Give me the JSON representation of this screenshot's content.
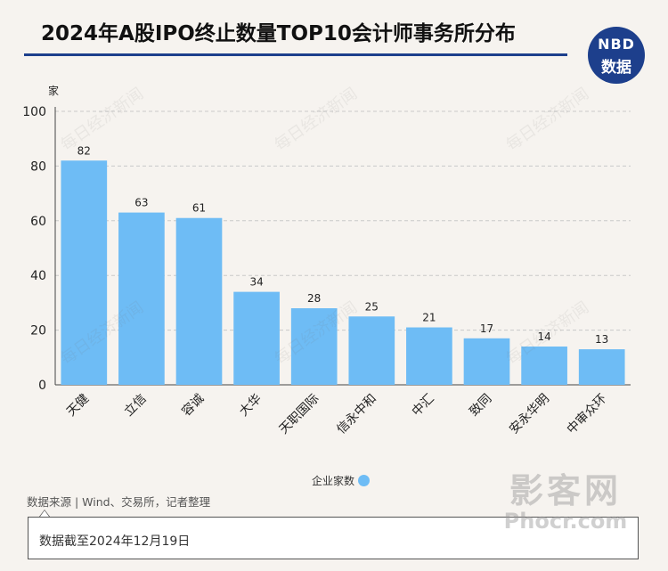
{
  "header": {
    "title": "2024年A股IPO终止数量TOP10会计师事务所分布",
    "logo_top": "NBD",
    "logo_bottom": "数据"
  },
  "chart_data": {
    "type": "bar",
    "title": "2024年A股IPO终止数量TOP10会计师事务所分布",
    "ylabel": "家",
    "xlabel": "",
    "categories": [
      "天健",
      "立信",
      "容诚",
      "大华",
      "天职国际",
      "信永中和",
      "中汇",
      "致同",
      "安永华明",
      "中审众环"
    ],
    "series": [
      {
        "name": "企业家数",
        "values": [
          82,
          63,
          61,
          34,
          28,
          25,
          21,
          17,
          14,
          13
        ],
        "color": "#6ebcf5"
      }
    ],
    "ylim": [
      0,
      100
    ],
    "yticks": [
      0,
      20,
      40,
      60,
      80,
      100
    ],
    "grid": true,
    "legend": "bottom"
  },
  "legend": {
    "label": "企业家数"
  },
  "footer": {
    "source": "数据来源 | Wind、交易所，记者整理",
    "note": "数据截至2024年12月19日"
  },
  "watermark": {
    "text": "每日经济新闻",
    "site_top": "影客网",
    "site_bottom": "Phocr.com"
  }
}
